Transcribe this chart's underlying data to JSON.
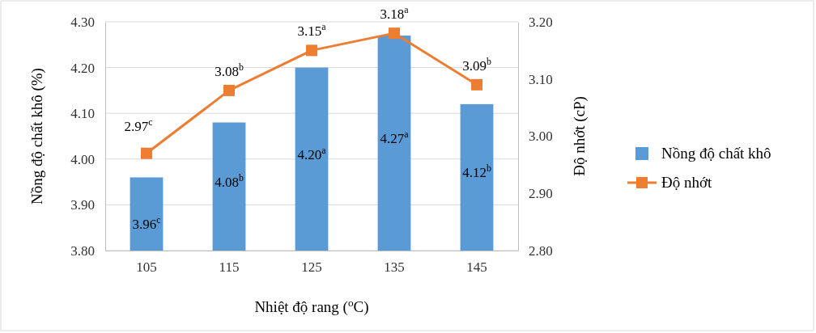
{
  "chart_data": {
    "type": "bar",
    "xlabel": "Nhiệt độ rang ($^{o}$C)",
    "ylabel": "Nồng độ chất khô (%)",
    "y2label": "Độ nhớt (cP)",
    "categories": [
      "105",
      "115",
      "125",
      "135",
      "145"
    ],
    "series": [
      {
        "name": "Nồng độ chất khô",
        "color": "#5b9bd5",
        "values": [
          3.96,
          4.08,
          4.2,
          4.27,
          4.12
        ],
        "value_labels": [
          "3.96$^{c}$",
          "4.08$^{b}$",
          "4.20$^{a}$",
          "4.27$^{a}$",
          "4.12$^{b}$"
        ]
      },
      {
        "name": "Độ nhớt",
        "type": "line",
        "axis": "y2",
        "color": "#ed7d31",
        "values": [
          2.97,
          3.08,
          3.15,
          3.18,
          3.09
        ],
        "value_labels": [
          "2.97$^{c}$",
          "3.08$^{b}$",
          "3.15$^{a}$",
          "3.18$^{a}$",
          "3.09$^{b}$"
        ]
      }
    ],
    "ylim": [
      3.8,
      4.3
    ],
    "yticks": [
      {
        "value": 3.8,
        "label": "3.80"
      },
      {
        "value": 3.9,
        "label": "3.90"
      },
      {
        "value": 4.0,
        "label": "4.00"
      },
      {
        "value": 4.1,
        "label": "4.10"
      },
      {
        "value": 4.2,
        "label": "4.20"
      },
      {
        "value": 4.3,
        "label": "4.30"
      }
    ],
    "y2lim": [
      2.8,
      3.2
    ],
    "y2ticks": [
      {
        "value": 2.8,
        "label": "2.80"
      },
      {
        "value": 2.9,
        "label": "2.90"
      },
      {
        "value": 3.0,
        "label": "3.00"
      },
      {
        "value": 3.1,
        "label": "3.10"
      },
      {
        "value": 3.2,
        "label": "3.20"
      }
    ],
    "grid": "y",
    "legend": "right",
    "marker": "square"
  }
}
